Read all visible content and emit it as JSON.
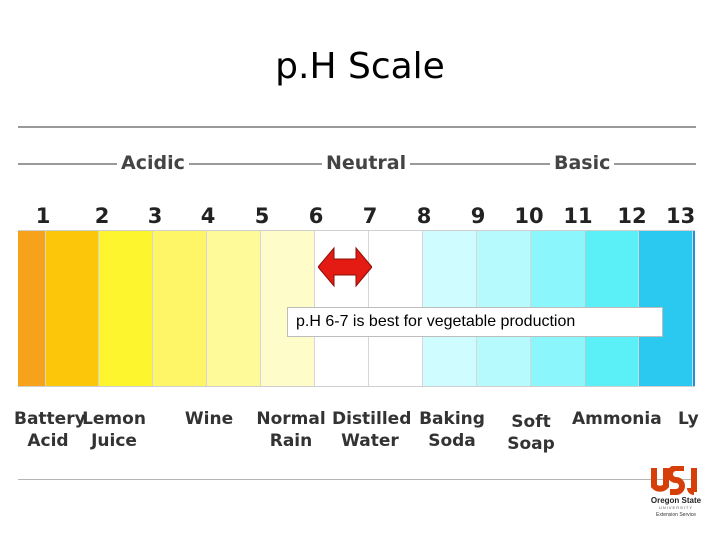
{
  "title": "p.H Scale",
  "zones": {
    "acidic": "Acidic",
    "neutral": "Neutral",
    "basic": "Basic"
  },
  "scale_numbers": [
    "1",
    "2",
    "3",
    "4",
    "5",
    "6",
    "7",
    "8",
    "9",
    "10",
    "11",
    "12",
    "13"
  ],
  "segment_colors": [
    "#f7a21b",
    "#fcc60a",
    "#fdf52e",
    "#fef567",
    "#fefa9a",
    "#fefcc8",
    "#ffffff",
    "#ffffff",
    "#cffcfe",
    "#b6fafd",
    "#8bf6fc",
    "#5beff7",
    "#2bc8ef",
    "#1d8fe6"
  ],
  "callout": "p.H 6-7 is best for vegetable production",
  "arrow_color": "#e31b12",
  "substances": [
    {
      "line1": "Battery",
      "line2": "Acid"
    },
    {
      "line1": "Lemon",
      "line2": "Juice"
    },
    {
      "line1": "Wine",
      "line2": ""
    },
    {
      "line1": "Normal",
      "line2": "Rain"
    },
    {
      "line1": "Distilled",
      "line2": "Water"
    },
    {
      "line1": "Baking",
      "line2": "Soda"
    },
    {
      "line1": "Soft",
      "line2": "Soap"
    },
    {
      "line1": "Ammonia",
      "line2": ""
    },
    {
      "line1": "Ly",
      "line2": ""
    }
  ],
  "logo": {
    "mark": "OSU",
    "line1": "Oregon State",
    "line2": "UNIVERSITY",
    "line3": "Extension Service",
    "color": "#d73f09"
  }
}
